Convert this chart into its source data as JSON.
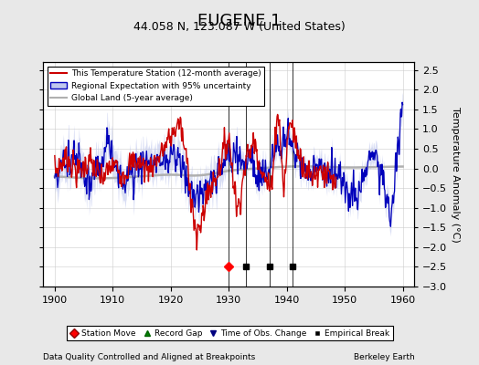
{
  "title": "EUGENE 1",
  "subtitle": "44.058 N, 123.087 W (United States)",
  "xlabel_left": "Data Quality Controlled and Aligned at Breakpoints",
  "xlabel_right": "Berkeley Earth",
  "ylabel": "Temperature Anomaly (°C)",
  "xlim": [
    1898,
    1962
  ],
  "ylim": [
    -3.0,
    2.7
  ],
  "yticks": [
    -3,
    -2.5,
    -2,
    -1.5,
    -1,
    -0.5,
    0,
    0.5,
    1,
    1.5,
    2,
    2.5
  ],
  "xticks": [
    1900,
    1910,
    1920,
    1930,
    1940,
    1950,
    1960
  ],
  "bg_color": "#e8e8e8",
  "plot_bg_color": "#ffffff",
  "red_line_color": "#cc0000",
  "blue_line_color": "#0000bb",
  "blue_fill_color": "#c0c8ee",
  "gray_line_color": "#b0b0b0",
  "station_move_year": 1930,
  "empirical_break_years": [
    1933,
    1937,
    1941
  ],
  "marker_val": -2.5,
  "vline_years": [
    1930,
    1933,
    1937,
    1941
  ],
  "red_end_year": 1948,
  "title_fontsize": 13,
  "subtitle_fontsize": 9,
  "label_fontsize": 8,
  "tick_fontsize": 8
}
